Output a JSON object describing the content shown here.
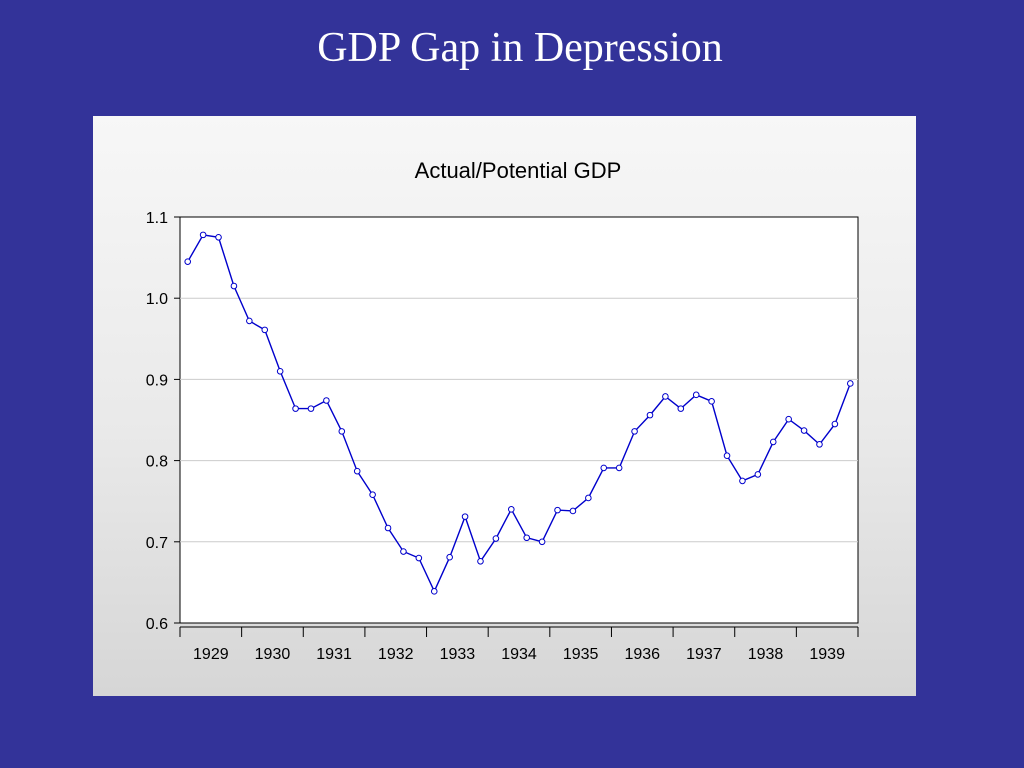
{
  "slide": {
    "title": "GDP Gap in Depression"
  },
  "colors": {
    "background": "#333399",
    "series": "#0000cc",
    "grid": "#cccccc"
  },
  "chart_data": {
    "type": "line",
    "title": "Actual/Potential GDP",
    "xlabel": "",
    "ylabel": "",
    "ylim": [
      0.6,
      1.1
    ],
    "yticks": [
      0.6,
      0.7,
      0.8,
      0.9,
      1.0,
      1.1
    ],
    "ytick_labels": [
      "0.6",
      "0.7",
      "0.8",
      "0.9",
      "1.0",
      "1.1"
    ],
    "xlim": [
      1928.875,
      1939.875
    ],
    "xtick_labels": [
      "1929",
      "1930",
      "1931",
      "1932",
      "1933",
      "1934",
      "1935",
      "1936",
      "1937",
      "1938",
      "1939"
    ],
    "grid": true,
    "legend": "none",
    "marker": "circle",
    "series": [
      {
        "x": [
          1929.0,
          1929.25,
          1929.5,
          1929.75,
          1930.0,
          1930.25,
          1930.5,
          1930.75,
          1931.0,
          1931.25,
          1931.5,
          1931.75,
          1932.0,
          1932.25,
          1932.5,
          1932.75,
          1933.0,
          1933.25,
          1933.5,
          1933.75,
          1934.0,
          1934.25,
          1934.5,
          1934.75,
          1935.0,
          1935.25,
          1935.5,
          1935.75,
          1936.0,
          1936.25,
          1936.5,
          1936.75,
          1937.0,
          1937.25,
          1937.5,
          1937.75,
          1938.0,
          1938.25,
          1938.5,
          1938.75,
          1939.0,
          1939.25,
          1939.5,
          1939.75
        ],
        "values": [
          1.045,
          1.078,
          1.075,
          1.015,
          0.972,
          0.961,
          0.91,
          0.864,
          0.864,
          0.874,
          0.836,
          0.787,
          0.758,
          0.717,
          0.688,
          0.68,
          0.639,
          0.681,
          0.731,
          0.676,
          0.704,
          0.74,
          0.705,
          0.7,
          0.739,
          0.738,
          0.754,
          0.791,
          0.791,
          0.836,
          0.856,
          0.879,
          0.864,
          0.881,
          0.873,
          0.806,
          0.775,
          0.783,
          0.823,
          0.851,
          0.837,
          0.82,
          0.845,
          0.895
        ]
      }
    ]
  }
}
